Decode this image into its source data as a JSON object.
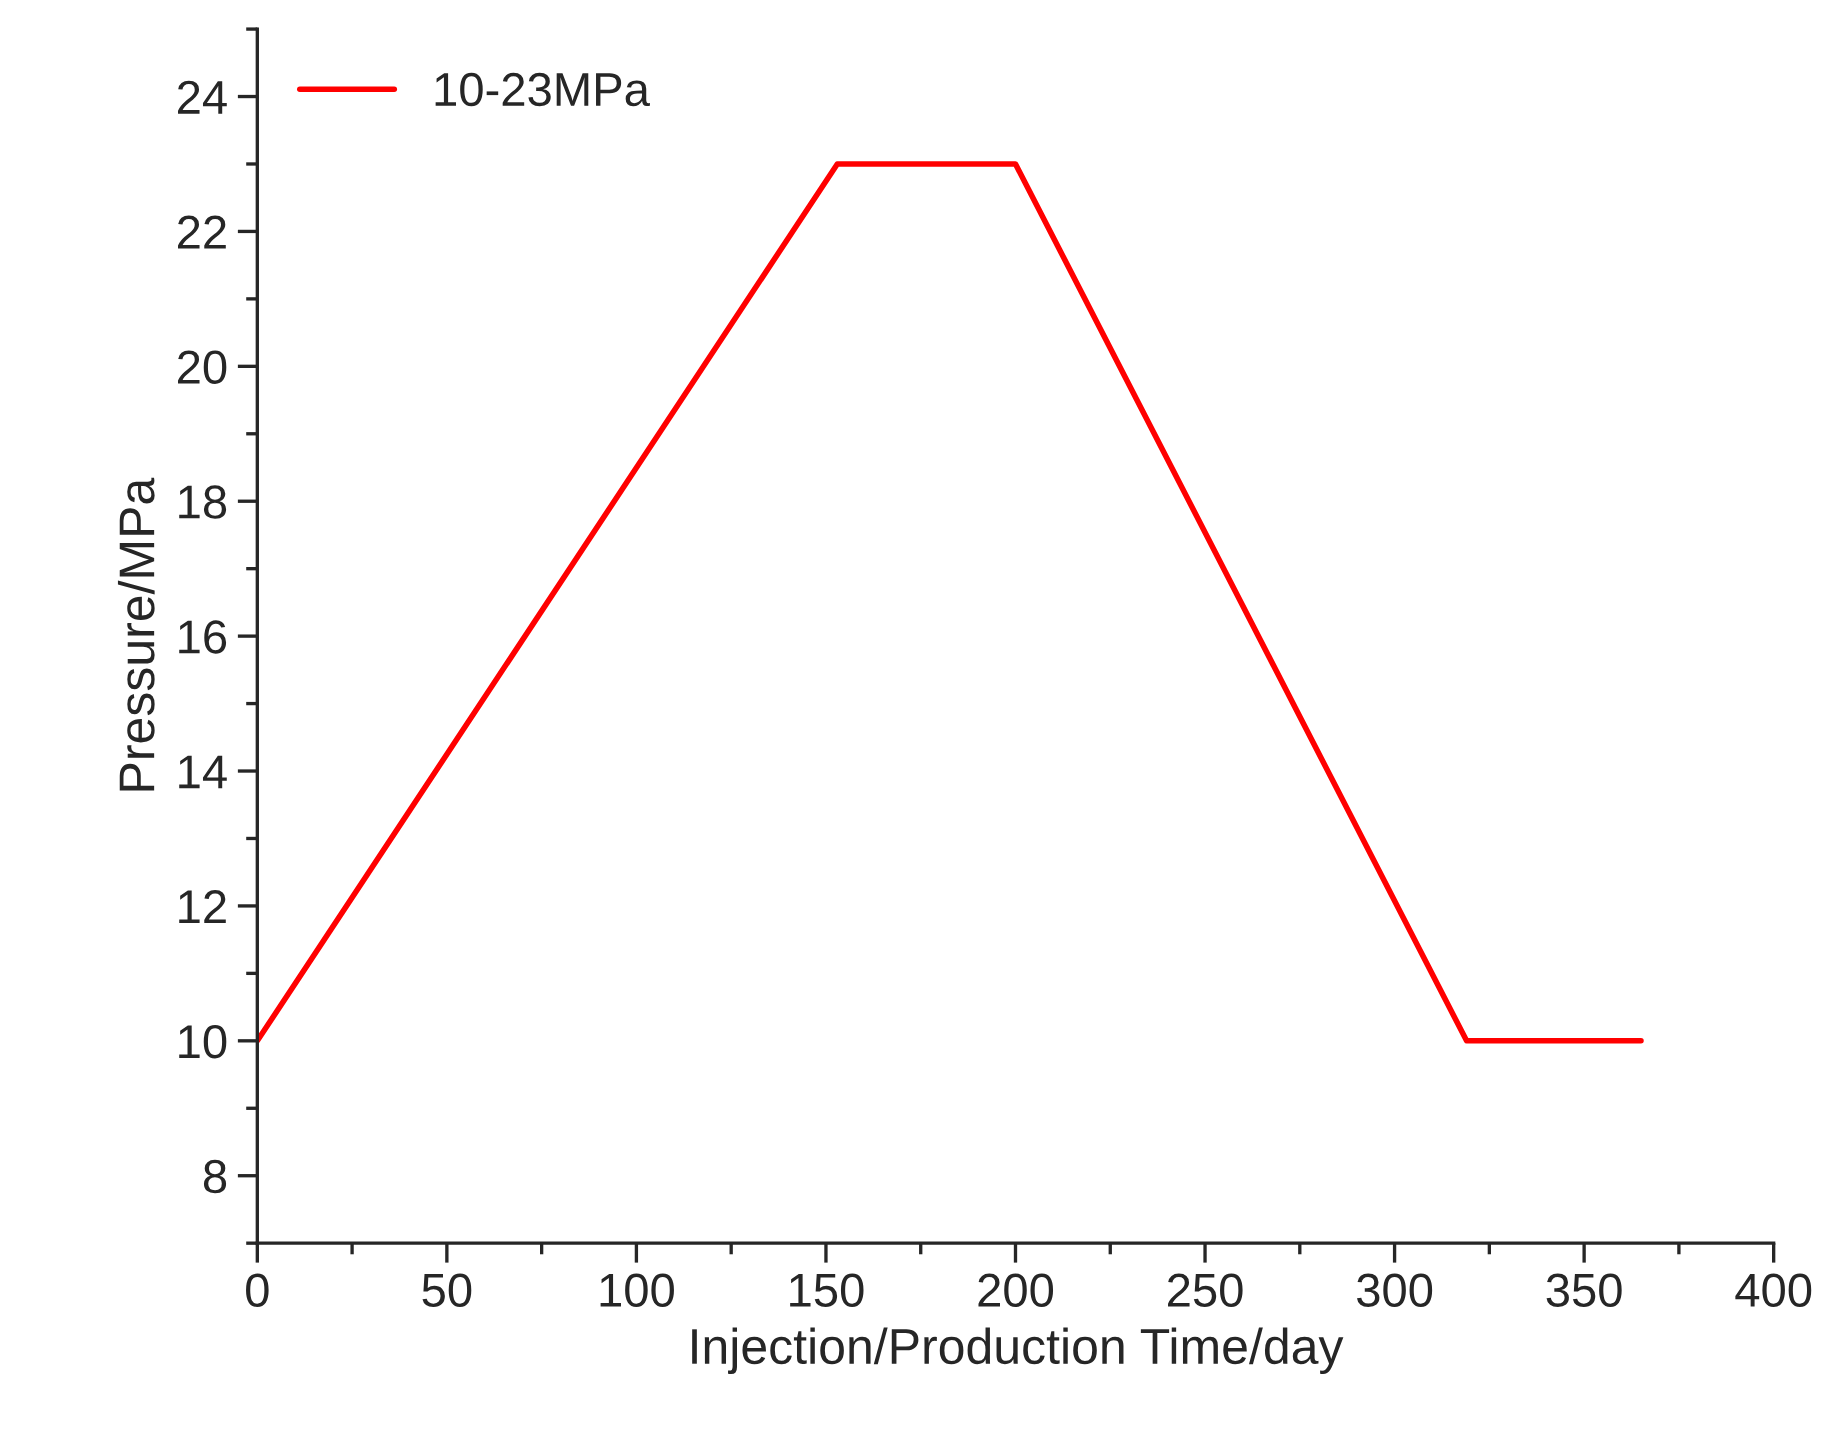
{
  "chart_data": {
    "type": "line",
    "xlabel": "Injection/Production Time/day",
    "ylabel": "Pressure/MPa",
    "x": [
      0,
      153,
      200,
      319,
      365
    ],
    "series": [
      {
        "name": "10-23MPa",
        "color": "#ff0000",
        "values": [
          10,
          23,
          23,
          10,
          10
        ]
      }
    ],
    "xlim": [
      0,
      400
    ],
    "xticks": [
      0,
      50,
      100,
      150,
      200,
      250,
      300,
      350,
      400
    ],
    "ylim": [
      7,
      25
    ],
    "yticks": [
      8,
      10,
      12,
      14,
      16,
      18,
      20,
      22,
      24
    ],
    "grid": false,
    "legend": "top left",
    "marker": "none",
    "line_style": "solid"
  }
}
